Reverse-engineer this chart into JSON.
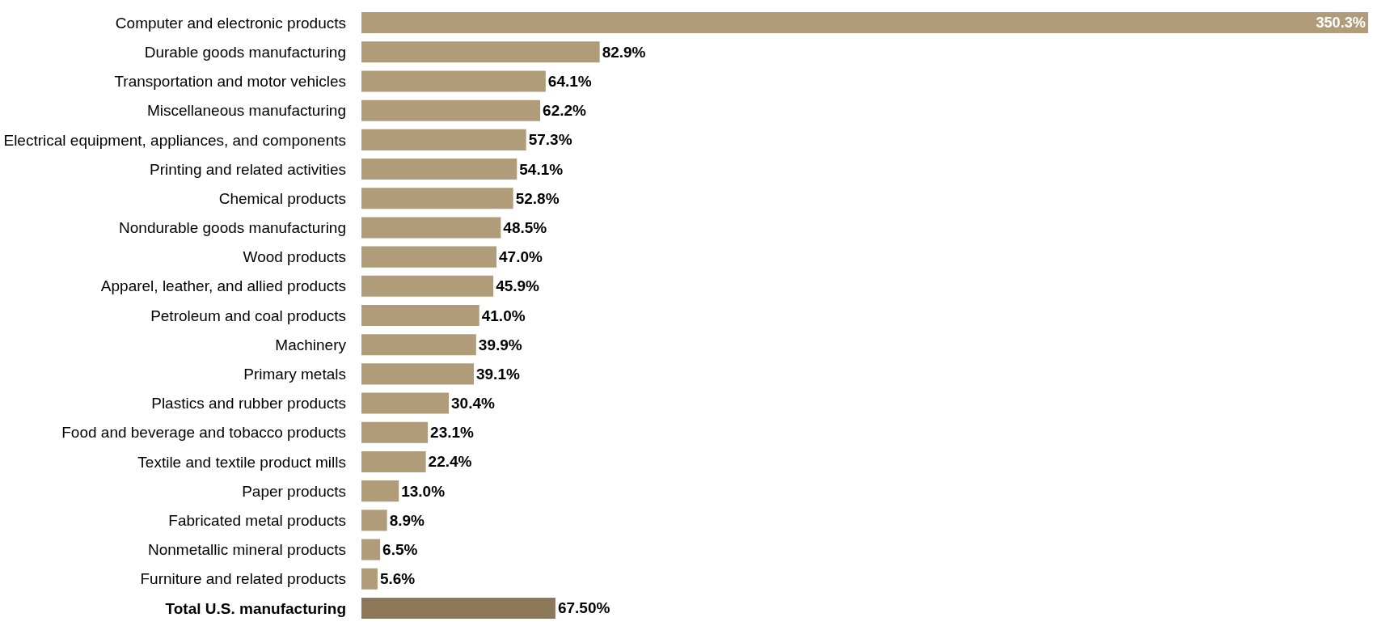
{
  "chart_data": {
    "type": "bar",
    "orientation": "horizontal",
    "categories": [
      "Computer and electronic products",
      "Durable goods manufacturing",
      "Transportation and motor vehicles",
      "Miscellaneous manufacturing",
      "Electrical equipment, appliances, and components",
      "Printing and related activities",
      "Chemical products",
      "Nondurable goods manufacturing",
      "Wood products",
      "Apparel, leather, and allied products",
      "Petroleum and coal products",
      "Machinery",
      "Primary metals",
      "Plastics and rubber products",
      "Food and beverage and tobacco products",
      "Textile and textile product mills",
      "Paper products",
      "Fabricated metal products",
      "Nonmetallic mineral products",
      "Furniture and related products",
      "Total U.S. manufacturing"
    ],
    "values": [
      350.3,
      82.9,
      64.1,
      62.2,
      57.3,
      54.1,
      52.8,
      48.5,
      47.0,
      45.9,
      41.0,
      39.9,
      39.1,
      30.4,
      23.1,
      22.4,
      13.0,
      8.9,
      6.5,
      5.6,
      67.5
    ],
    "value_labels": [
      "350.3%",
      "82.9%",
      "64.1%",
      "62.2%",
      "57.3%",
      "54.1%",
      "52.8%",
      "48.5%",
      "47.0%",
      "45.9%",
      "41.0%",
      "39.9%",
      "39.1%",
      "30.4%",
      "23.1%",
      "22.4%",
      "13.0%",
      "8.9%",
      "6.5%",
      "5.6%",
      "67.50%"
    ],
    "colors": [
      "#b09c78",
      "#b09c78",
      "#b09c78",
      "#b09c78",
      "#b09c78",
      "#b09c78",
      "#b09c78",
      "#b09c78",
      "#b09c78",
      "#b09c78",
      "#b09c78",
      "#b09c78",
      "#b09c78",
      "#b09c78",
      "#b09c78",
      "#b09c78",
      "#b09c78",
      "#b09c78",
      "#b09c78",
      "#b09c78",
      "#8c7758"
    ]
  }
}
